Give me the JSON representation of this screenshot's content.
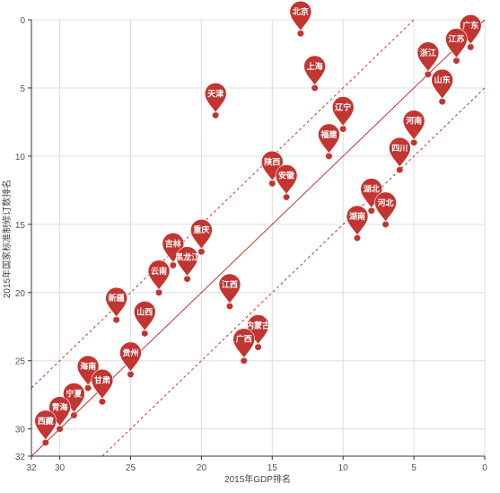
{
  "chart_data": {
    "type": "scatter",
    "title": "",
    "xlabel": "2015年GDP排名",
    "ylabel": "2015年国家标准制修订数排名",
    "xlim": [
      32,
      0
    ],
    "ylim": [
      0,
      32
    ],
    "x_ticks": [
      32,
      30,
      25,
      20,
      15,
      10,
      5,
      0
    ],
    "y_ticks": [
      0,
      5,
      10,
      15,
      20,
      25,
      30,
      32
    ],
    "grid": true,
    "colors": {
      "point": "#c23531",
      "line": "#c23531",
      "grid": "#dddddd",
      "axis": "#333333"
    },
    "reference_lines": [
      {
        "style": "solid",
        "points": [
          [
            32,
            32
          ],
          [
            0,
            0
          ]
        ]
      },
      {
        "style": "dashed",
        "points": [
          [
            32,
            27
          ],
          [
            5,
            0
          ]
        ]
      },
      {
        "style": "dashed",
        "points": [
          [
            27,
            32
          ],
          [
            0,
            5
          ]
        ]
      }
    ],
    "points": [
      {
        "name": "北京",
        "x": 13,
        "y": 1
      },
      {
        "name": "广东",
        "x": 1,
        "y": 2
      },
      {
        "name": "江苏",
        "x": 2,
        "y": 3
      },
      {
        "name": "浙江",
        "x": 4,
        "y": 4
      },
      {
        "name": "上海",
        "x": 12,
        "y": 5
      },
      {
        "name": "山东",
        "x": 3,
        "y": 6
      },
      {
        "name": "天津",
        "x": 19,
        "y": 7
      },
      {
        "name": "辽宁",
        "x": 10,
        "y": 8
      },
      {
        "name": "河南",
        "x": 5,
        "y": 9
      },
      {
        "name": "福建",
        "x": 11,
        "y": 10
      },
      {
        "name": "四川",
        "x": 6,
        "y": 11
      },
      {
        "name": "陕西",
        "x": 15,
        "y": 12
      },
      {
        "name": "安徽",
        "x": 14,
        "y": 13
      },
      {
        "name": "湖北",
        "x": 8,
        "y": 14
      },
      {
        "name": "河北",
        "x": 7,
        "y": 15
      },
      {
        "name": "湖南",
        "x": 9,
        "y": 16
      },
      {
        "name": "重庆",
        "x": 20,
        "y": 17
      },
      {
        "name": "吉林",
        "x": 22,
        "y": 18
      },
      {
        "name": "黑龙江",
        "x": 21,
        "y": 19
      },
      {
        "name": "云南",
        "x": 23,
        "y": 20
      },
      {
        "name": "江西",
        "x": 18,
        "y": 21
      },
      {
        "name": "新疆",
        "x": 26,
        "y": 22
      },
      {
        "name": "山西",
        "x": 24,
        "y": 23
      },
      {
        "name": "内蒙古",
        "x": 16,
        "y": 24
      },
      {
        "name": "广西",
        "x": 17,
        "y": 25
      },
      {
        "name": "贵州",
        "x": 25,
        "y": 26
      },
      {
        "name": "海南",
        "x": 28,
        "y": 27
      },
      {
        "name": "甘肃",
        "x": 27,
        "y": 28
      },
      {
        "name": "宁夏",
        "x": 29,
        "y": 29
      },
      {
        "name": "青海",
        "x": 30,
        "y": 30
      },
      {
        "name": "西藏",
        "x": 31,
        "y": 31
      }
    ]
  }
}
